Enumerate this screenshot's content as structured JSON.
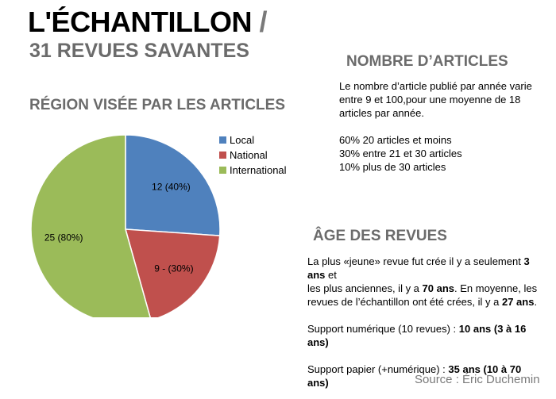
{
  "title": {
    "line1": "L'ÉCHANTILLON",
    "slash": " /",
    "line2": "31 REVUES SAVANTES"
  },
  "colors": {
    "local": "#4f81bd",
    "national": "#c0504d",
    "international": "#9bbb59",
    "heading_gray": "#6b6b6b"
  },
  "chart_data": {
    "type": "pie",
    "title": "RÉGION VISÉE PAR LES ARTICLES",
    "legend_position": "right",
    "slices": [
      {
        "name": "Local",
        "value": 12,
        "label": "12 (40%)",
        "color": "#4f81bd"
      },
      {
        "name": "National",
        "value": 9,
        "label": "9 - (30%)",
        "color": "#c0504d"
      },
      {
        "name": "International",
        "value": 25,
        "label": "25 (80%)",
        "color": "#9bbb59"
      }
    ]
  },
  "articles": {
    "heading": "NOMBRE D’ARTICLES",
    "intro_l1": "Le nombre d’article publié par année varie",
    "intro_l2": "entre 9 et 100,pour une moyenne de 18",
    "intro_l3": "articles par année.",
    "stat1": "60%  20 articles et moins",
    "stat2": "30% entre 21 et 30 articles",
    "stat3": "10% plus de 30 articles"
  },
  "age": {
    "heading": "ÂGE DES REVUES",
    "l1a": "La plus «jeune» revue fut crée il y a seulement ",
    "l1b": "3 ans",
    "l1c": " et",
    "l2a": "les plus anciennes, il y a ",
    "l2b": "70 ans",
    "l2c": ".   En moyenne, les",
    "l3a": "revues de l’échantillon ont été crées, il y a ",
    "l3b": "27 ans",
    "l3c": ".",
    "digital_label": "Support numérique (10 revues) : ",
    "digital_value": "10 ans (3 à 16 ans)",
    "paper_label": "Support papier (+numérique) : ",
    "paper_value": "35 ans (10  à 70 ans)"
  },
  "source": "Source : Éric Duchemin"
}
